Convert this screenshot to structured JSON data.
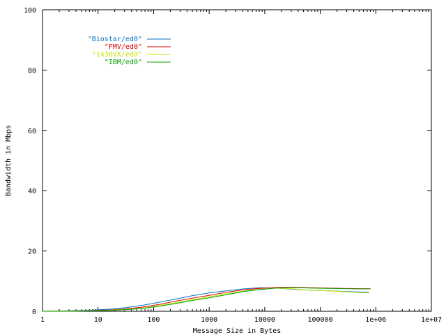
{
  "chart_data": {
    "type": "line",
    "title": "",
    "xlabel": "Message Size in Bytes",
    "ylabel": "Bandwidth in Mbps",
    "x_scale": "log",
    "xlim": [
      1,
      10000000
    ],
    "ylim": [
      0,
      100
    ],
    "x_ticks": [
      1,
      10,
      100,
      1000,
      10000,
      100000,
      1000000,
      10000000
    ],
    "x_tick_labels": [
      "1",
      "10",
      "100",
      "1000",
      "10000",
      "100000",
      "1e+06",
      "1e+07"
    ],
    "y_ticks": [
      0,
      20,
      40,
      60,
      80,
      100
    ],
    "y_tick_labels": [
      "0",
      "20",
      "40",
      "60",
      "80",
      "100"
    ],
    "grid": false,
    "legend_position": "top-left",
    "series": [
      {
        "name": "\"Biostar/ed0\"",
        "color": "#0072c6",
        "points": [
          [
            1,
            0.0
          ],
          [
            2,
            0.1
          ],
          [
            4,
            0.2
          ],
          [
            8,
            0.4
          ],
          [
            16,
            0.7
          ],
          [
            32,
            1.2
          ],
          [
            64,
            2.0
          ],
          [
            128,
            3.0
          ],
          [
            256,
            4.1
          ],
          [
            512,
            5.2
          ],
          [
            1024,
            6.1
          ],
          [
            2048,
            6.8
          ],
          [
            4096,
            7.4
          ],
          [
            8192,
            7.8
          ],
          [
            16384,
            7.7
          ],
          [
            32768,
            7.3
          ],
          [
            65536,
            7.0
          ],
          [
            131072,
            6.8
          ],
          [
            262144,
            6.6
          ],
          [
            524288,
            6.4
          ],
          [
            750000,
            6.3
          ]
        ]
      },
      {
        "name": "\"FMV/ed0\"",
        "color": "#e00000",
        "points": [
          [
            1,
            0.0
          ],
          [
            2,
            0.05
          ],
          [
            4,
            0.1
          ],
          [
            8,
            0.25
          ],
          [
            16,
            0.45
          ],
          [
            32,
            0.8
          ],
          [
            64,
            1.4
          ],
          [
            128,
            2.3
          ],
          [
            256,
            3.4
          ],
          [
            512,
            4.4
          ],
          [
            1024,
            5.3
          ],
          [
            2048,
            6.3
          ],
          [
            4096,
            7.1
          ],
          [
            8192,
            7.6
          ],
          [
            16384,
            7.9
          ],
          [
            32768,
            8.0
          ],
          [
            65536,
            7.8
          ],
          [
            131072,
            7.7
          ],
          [
            262144,
            7.6
          ],
          [
            524288,
            7.5
          ],
          [
            800000,
            7.5
          ]
        ]
      },
      {
        "name": "\"1430VX/ed0\"",
        "color": "#bfe600",
        "points": [
          [
            1,
            0.0
          ],
          [
            2,
            0.05
          ],
          [
            4,
            0.1
          ],
          [
            8,
            0.2
          ],
          [
            16,
            0.35
          ],
          [
            32,
            0.65
          ],
          [
            64,
            1.1
          ],
          [
            128,
            1.9
          ],
          [
            256,
            2.9
          ],
          [
            512,
            3.9
          ],
          [
            1024,
            4.8
          ],
          [
            2048,
            5.8
          ],
          [
            4096,
            6.7
          ],
          [
            8192,
            7.3
          ],
          [
            16384,
            7.7
          ],
          [
            32768,
            7.4
          ],
          [
            65536,
            7.0
          ],
          [
            131072,
            6.8
          ],
          [
            262144,
            6.5
          ],
          [
            524288,
            6.2
          ],
          [
            750000,
            6.1
          ]
        ]
      },
      {
        "name": "\"IBM/ed0\"",
        "color": "#00a000",
        "points": [
          [
            1,
            0.0
          ],
          [
            2,
            0.03
          ],
          [
            4,
            0.08
          ],
          [
            8,
            0.15
          ],
          [
            16,
            0.3
          ],
          [
            32,
            0.55
          ],
          [
            64,
            0.95
          ],
          [
            128,
            1.7
          ],
          [
            256,
            2.6
          ],
          [
            512,
            3.6
          ],
          [
            1024,
            4.5
          ],
          [
            2048,
            5.5
          ],
          [
            4096,
            6.5
          ],
          [
            8192,
            7.2
          ],
          [
            16384,
            7.7
          ],
          [
            32768,
            7.9
          ],
          [
            65536,
            7.7
          ],
          [
            131072,
            7.6
          ],
          [
            262144,
            7.5
          ],
          [
            524288,
            7.4
          ],
          [
            800000,
            7.4
          ]
        ]
      }
    ]
  }
}
